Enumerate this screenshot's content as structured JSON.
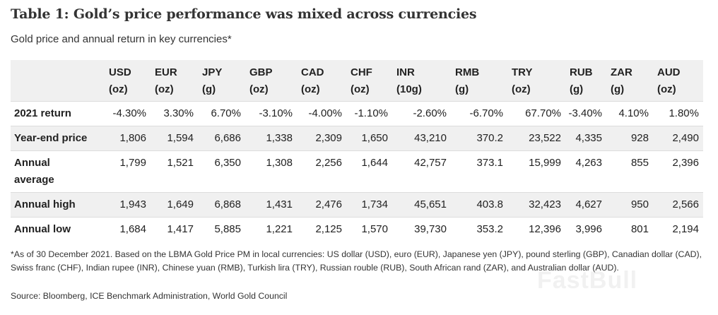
{
  "title": "Table 1: Gold’s price performance was mixed across currencies",
  "subtitle": "Gold price and annual return in key currencies*",
  "table": {
    "columns": [
      {
        "code": "USD",
        "unit": "(oz)"
      },
      {
        "code": "EUR",
        "unit": "(oz)"
      },
      {
        "code": "JPY",
        "unit": "(g)"
      },
      {
        "code": "GBP",
        "unit": "(oz)"
      },
      {
        "code": "CAD",
        "unit": "(oz)"
      },
      {
        "code": "CHF",
        "unit": "(oz)"
      },
      {
        "code": "INR",
        "unit": "(10g)"
      },
      {
        "code": "RMB",
        "unit": "(g)"
      },
      {
        "code": "TRY",
        "unit": "(oz)"
      },
      {
        "code": "RUB",
        "unit": "(g)"
      },
      {
        "code": "ZAR",
        "unit": "(g)"
      },
      {
        "code": "AUD",
        "unit": "(oz)"
      }
    ],
    "rows": [
      {
        "label": "2021 return",
        "values": [
          "-4.30%",
          "3.30%",
          "6.70%",
          "-3.10%",
          "-4.00%",
          "-1.10%",
          "-2.60%",
          "-6.70%",
          "67.70%",
          "-3.40%",
          "4.10%",
          "1.80%"
        ]
      },
      {
        "label": "Year-end price",
        "values": [
          "1,806",
          "1,594",
          "6,686",
          "1,338",
          "2,309",
          "1,650",
          "43,210",
          "370.2",
          "23,522",
          "4,335",
          "928",
          "2,490"
        ]
      },
      {
        "label": "Annual average",
        "values": [
          "1,799",
          "1,521",
          "6,350",
          "1,308",
          "2,256",
          "1,644",
          "42,757",
          "373.1",
          "15,999",
          "4,263",
          "855",
          "2,396"
        ]
      },
      {
        "label": "Annual high",
        "values": [
          "1,943",
          "1,649",
          "6,868",
          "1,431",
          "2,476",
          "1,734",
          "45,651",
          "403.8",
          "32,423",
          "4,627",
          "950",
          "2,566"
        ]
      },
      {
        "label": "Annual low",
        "values": [
          "1,684",
          "1,417",
          "5,885",
          "1,221",
          "2,125",
          "1,570",
          "39,730",
          "353.2",
          "12,396",
          "3,996",
          "801",
          "2,194"
        ]
      }
    ]
  },
  "footnote": "*As of 30 December 2021. Based on the LBMA Gold Price PM in local currencies: US dollar (USD), euro (EUR), Japanese yen (JPY), pound sterling (GBP), Canadian dollar (CAD), Swiss franc (CHF), Indian rupee (INR), Chinese yuan (RMB), Turkish lira (TRY), Russian rouble (RUB), South African rand (ZAR), and Australian dollar (AUD).",
  "source": "Source: Bloomberg, ICE Benchmark Administration, World Gold Council",
  "watermark": "FastBull"
}
